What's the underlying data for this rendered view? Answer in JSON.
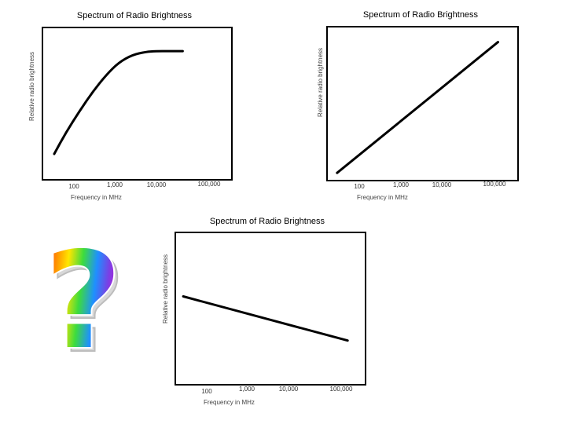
{
  "chart_data": [
    {
      "type": "line",
      "title": "Spectrum of Radio Brightness",
      "xlabel": "Frequency in MHz",
      "ylabel": "Relative radio brightness",
      "x_scale": "log",
      "xlim": [
        30,
        500000
      ],
      "ylim": [
        0,
        1
      ],
      "x_ticks": [
        "100",
        "1,000",
        "10,000",
        "100,000"
      ],
      "series": [
        {
          "x": [
            55,
            100,
            200,
            400,
            800,
            1500,
            3000,
            6000,
            10000,
            20000,
            40000
          ],
          "values": [
            0.17,
            0.31,
            0.45,
            0.58,
            0.69,
            0.77,
            0.82,
            0.84,
            0.845,
            0.845,
            0.845
          ]
        }
      ]
    },
    {
      "type": "line",
      "title": "Spectrum of Radio Brightness",
      "xlabel": "Frequency in MHz",
      "ylabel": "Relative radio brightness",
      "x_scale": "log",
      "xlim": [
        30,
        500000
      ],
      "ylim": [
        0,
        1
      ],
      "x_ticks": [
        "100",
        "1,000",
        "10,000",
        "100,000"
      ],
      "series": [
        {
          "x": [
            50,
            180000
          ],
          "values": [
            0.05,
            0.9
          ]
        }
      ]
    },
    {
      "type": "line",
      "title": "Spectrum of Radio Brightness",
      "xlabel": "Frequency in MHz",
      "ylabel": "Relative radio brightness",
      "x_scale": "log",
      "xlim": [
        30,
        500000
      ],
      "ylim": [
        0,
        1
      ],
      "x_ticks": [
        "100",
        "1,000",
        "10,000",
        "100,000"
      ],
      "series": [
        {
          "x": [
            45,
            200000
          ],
          "values": [
            0.58,
            0.29
          ]
        }
      ]
    }
  ],
  "question_mark": "?",
  "icon": "rainbow-question-mark-icon"
}
